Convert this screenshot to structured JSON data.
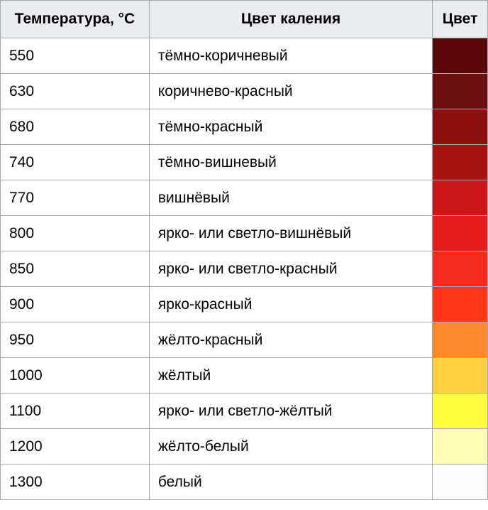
{
  "table": {
    "headers": {
      "temperature": "Температура, °C",
      "color_name": "Цвет каления",
      "color": "Цвет"
    },
    "rows": [
      {
        "temperature": "550",
        "name": "тёмно-коричневый",
        "color": "#5a0808"
      },
      {
        "temperature": "630",
        "name": "коричнево-красный",
        "color": "#6b0e0e"
      },
      {
        "temperature": "680",
        "name": "тёмно-красный",
        "color": "#8a0f0f"
      },
      {
        "temperature": "740",
        "name": "тёмно-вишневый",
        "color": "#a61111"
      },
      {
        "temperature": "770",
        "name": "вишнёвый",
        "color": "#c91515"
      },
      {
        "temperature": "800",
        "name": "ярко- или светло-вишнёвый",
        "color": "#e31b1b"
      },
      {
        "temperature": "850",
        "name": "ярко- или светло-красный",
        "color": "#f52a1f"
      },
      {
        "temperature": "900",
        "name": "ярко-красный",
        "color": "#ff3617"
      },
      {
        "temperature": "950",
        "name": "жёлто-красный",
        "color": "#ff8a2e"
      },
      {
        "temperature": "1000",
        "name": "жёлтый",
        "color": "#ffd040"
      },
      {
        "temperature": "1100",
        "name": "ярко- или светло-жёлтый",
        "color": "#ffff3f"
      },
      {
        "temperature": "1200",
        "name": "жёлто-белый",
        "color": "#ffffb8"
      },
      {
        "temperature": "1300",
        "name": "белый",
        "color": "#fefefe"
      }
    ],
    "styling": {
      "header_bg": "#eaecf0",
      "border_color": "#a2a9b1",
      "font_family": "Arial, sans-serif",
      "header_fontsize": 21,
      "cell_fontsize": 21,
      "header_weight": "bold",
      "col_widths": {
        "temperature": 210,
        "name": 400,
        "color": 78
      }
    }
  }
}
